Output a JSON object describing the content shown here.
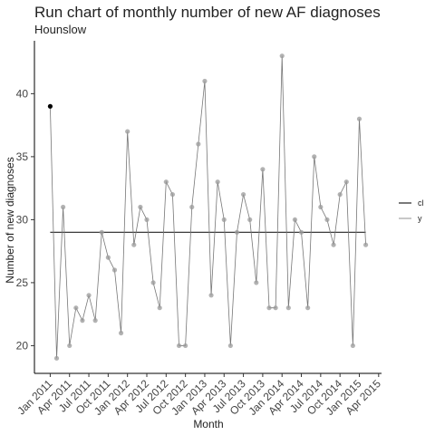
{
  "chart_data": {
    "type": "line",
    "title": "Run chart of monthly number of new AF diagnoses",
    "subtitle": "Hounslow",
    "xlabel": "Month",
    "ylabel": "Number of new diagnoses",
    "x": [
      "2011-01",
      "2011-02",
      "2011-03",
      "2011-04",
      "2011-05",
      "2011-06",
      "2011-07",
      "2011-08",
      "2011-09",
      "2011-10",
      "2011-11",
      "2011-12",
      "2012-01",
      "2012-02",
      "2012-03",
      "2012-04",
      "2012-05",
      "2012-06",
      "2012-07",
      "2012-08",
      "2012-09",
      "2012-10",
      "2012-11",
      "2012-12",
      "2013-01",
      "2013-02",
      "2013-03",
      "2013-04",
      "2013-05",
      "2013-06",
      "2013-07",
      "2013-08",
      "2013-09",
      "2013-10",
      "2013-11",
      "2013-12",
      "2014-01",
      "2014-02",
      "2014-03",
      "2014-04",
      "2014-05",
      "2014-06",
      "2014-07",
      "2014-08",
      "2014-09",
      "2014-10",
      "2014-11",
      "2014-12",
      "2015-01",
      "2015-02"
    ],
    "series": [
      {
        "name": "cl",
        "color": "#222222",
        "value": 29
      },
      {
        "name": "y",
        "color": "#777777",
        "values": [
          39,
          19,
          31,
          20,
          23,
          22,
          24,
          22,
          29,
          27,
          26,
          21,
          37,
          28,
          31,
          30,
          25,
          23,
          33,
          32,
          20,
          20,
          31,
          36,
          41,
          24,
          33,
          30,
          20,
          29,
          32,
          30,
          25,
          34,
          23,
          23,
          43,
          23,
          30,
          29,
          23,
          35,
          31,
          30,
          28,
          32,
          33,
          20,
          38,
          28
        ]
      }
    ],
    "xticks": [
      {
        "value": "2011-01",
        "label": "Jan 2011"
      },
      {
        "value": "2011-04",
        "label": "Apr 2011"
      },
      {
        "value": "2011-07",
        "label": "Jul 2011"
      },
      {
        "value": "2011-10",
        "label": "Oct 2011"
      },
      {
        "value": "2012-01",
        "label": "Jan 2012"
      },
      {
        "value": "2012-04",
        "label": "Apr 2012"
      },
      {
        "value": "2012-07",
        "label": "Jul 2012"
      },
      {
        "value": "2012-10",
        "label": "Oct 2012"
      },
      {
        "value": "2013-01",
        "label": "Jan 2013"
      },
      {
        "value": "2013-04",
        "label": "Apr 2013"
      },
      {
        "value": "2013-07",
        "label": "Jul 2013"
      },
      {
        "value": "2013-10",
        "label": "Oct 2013"
      },
      {
        "value": "2014-01",
        "label": "Jan 2014"
      },
      {
        "value": "2014-04",
        "label": "Apr 2014"
      },
      {
        "value": "2014-07",
        "label": "Jul 2014"
      },
      {
        "value": "2014-10",
        "label": "Oct 2014"
      },
      {
        "value": "2015-01",
        "label": "Jan 2015"
      },
      {
        "value": "2015-04",
        "label": "Apr 2015"
      }
    ],
    "ylim": [
      17.8,
      44.2
    ],
    "yticks": [
      20,
      25,
      30,
      35,
      40
    ],
    "legend": "right"
  }
}
